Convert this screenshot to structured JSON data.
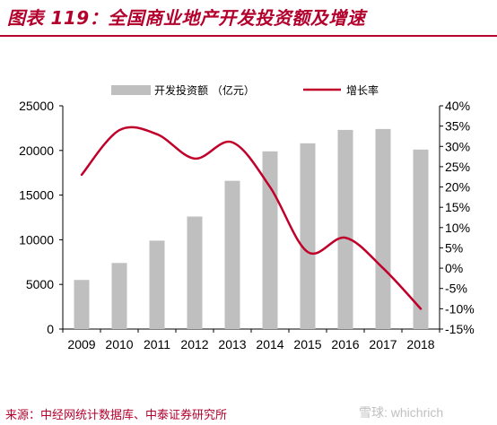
{
  "header": {
    "title": "图表 119：全国商业地产开发投资额及增速"
  },
  "footer": {
    "source": "来源：中经网统计数据库、中泰证券研究所",
    "watermark": "雪球: whichrich"
  },
  "colors": {
    "accent": "#b3002d",
    "bar": "#bfbfbf",
    "line": "#c0002a"
  },
  "chart_data": {
    "type": "bar",
    "categories": [
      "2009",
      "2010",
      "2011",
      "2012",
      "2013",
      "2014",
      "2015",
      "2016",
      "2017",
      "2018"
    ],
    "series": [
      {
        "name": "开发投资额 （亿元）",
        "type": "bar",
        "axis": "left",
        "values": [
          5500,
          7400,
          9900,
          12600,
          16600,
          19900,
          20800,
          22300,
          22400,
          20100
        ]
      },
      {
        "name": "增长率",
        "type": "line",
        "axis": "right",
        "values": [
          23,
          34,
          33,
          27,
          31,
          20,
          4,
          7.5,
          0,
          -10
        ]
      }
    ],
    "y_left": {
      "min": 0,
      "max": 25000,
      "ticks": [
        "0",
        "5000",
        "10000",
        "15000",
        "20000",
        "25000"
      ]
    },
    "y_right": {
      "min": -15,
      "max": 40,
      "ticks": [
        "-15%",
        "-10%",
        "-5%",
        "0%",
        "5%",
        "10%",
        "15%",
        "20%",
        "25%",
        "30%",
        "35%",
        "40%"
      ]
    },
    "legend": "top",
    "grid": false
  }
}
